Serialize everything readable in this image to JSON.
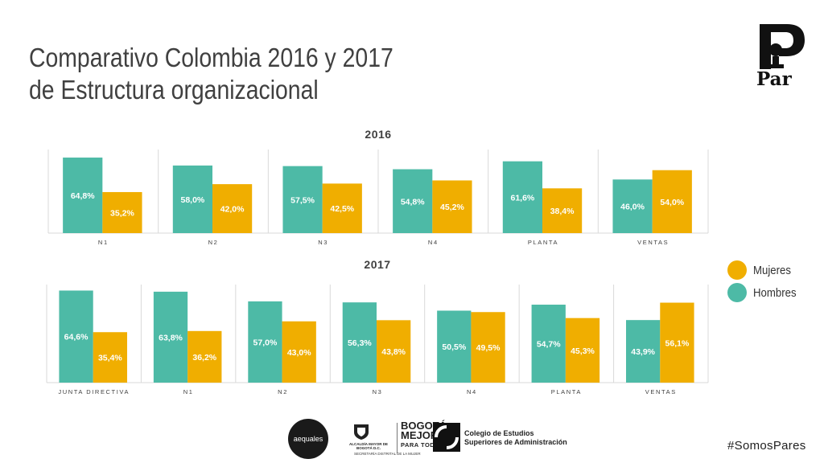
{
  "title_line1": "Comparativo Colombia 2016 y 2017",
  "title_line2": "de Estructura organizacional",
  "colors": {
    "hombres": "#4dbaa6",
    "mujeres": "#f0ae00",
    "grid": "#d9d9d9",
    "text": "#404040"
  },
  "legend": [
    {
      "name": "Mujeres",
      "color": "#f0ae00"
    },
    {
      "name": "Hombres",
      "color": "#4dbaa6"
    }
  ],
  "chart_data": [
    {
      "type": "bar",
      "title": "2016",
      "categories": [
        "N1",
        "N2",
        "N3",
        "N4",
        "PLANTA",
        "VENTAS"
      ],
      "series": [
        {
          "name": "Hombres",
          "values": [
            64.8,
            58.0,
            57.5,
            54.8,
            61.6,
            46.0
          ],
          "labels": [
            "64,8%",
            "58,0%",
            "57,5%",
            "54,8%",
            "61,6%",
            "46,0%"
          ]
        },
        {
          "name": "Mujeres",
          "values": [
            35.2,
            42.0,
            42.5,
            45.2,
            38.4,
            54.0
          ],
          "labels": [
            "35,2%",
            "42,0%",
            "42,5%",
            "45,2%",
            "38,4%",
            "54,0%"
          ]
        }
      ],
      "ylim": [
        0,
        70
      ],
      "grid": false
    },
    {
      "type": "bar",
      "title": "2017",
      "categories": [
        "JUNTA DIRECTIVA",
        "N1",
        "N2",
        "N3",
        "N4",
        "PLANTA",
        "VENTAS"
      ],
      "series": [
        {
          "name": "Hombres",
          "values": [
            64.6,
            63.8,
            57.0,
            56.3,
            50.5,
            54.7,
            43.9
          ],
          "labels": [
            "64,6%",
            "63,8%",
            "57,0%",
            "56,3%",
            "50,5%",
            "54,7%",
            "43,9%"
          ]
        },
        {
          "name": "Mujeres",
          "values": [
            35.4,
            36.2,
            43.0,
            43.8,
            49.5,
            45.3,
            56.1
          ],
          "labels": [
            "35,4%",
            "36,2%",
            "43,0%",
            "43,8%",
            "49,5%",
            "45,3%",
            "56,1%"
          ]
        }
      ],
      "ylim": [
        0,
        70
      ],
      "grid": false
    }
  ],
  "logo": {
    "brand": "Par"
  },
  "footer": {
    "aequales": "aequales",
    "bogota_small": "ALCALDÍA MAYOR DE BOGOTÁ D.C.",
    "bogota_big1": "BOGOTÁ",
    "bogota_big2": "MEJOR",
    "bogota_big3": "PARA TODOS",
    "bogota_foot": "SECRETARÍA DISTRITAL DE LA MUJER",
    "cesa_line1": "Colegio de Estudios",
    "cesa_line2": "Superiores de Administración",
    "hashtag": "#SomosPares"
  }
}
